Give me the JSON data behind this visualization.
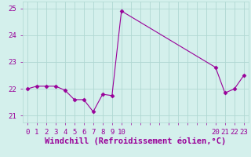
{
  "x": [
    0,
    1,
    2,
    3,
    4,
    5,
    6,
    7,
    8,
    9,
    10,
    20,
    21,
    22,
    23
  ],
  "y": [
    22.0,
    22.1,
    22.1,
    22.1,
    21.95,
    21.6,
    21.6,
    21.15,
    21.8,
    21.75,
    24.9,
    22.8,
    21.85,
    22.0,
    22.5
  ],
  "line_color": "#990099",
  "marker": "D",
  "marker_size": 2.5,
  "bg_color": "#d4f0ec",
  "grid_color": "#b0d8d2",
  "xlabel": "Windchill (Refroidissement éolien,°C)",
  "xlabel_color": "#990099",
  "ylim": [
    20.75,
    25.25
  ],
  "xlim": [
    -0.5,
    23.5
  ],
  "yticks": [
    21,
    22,
    23,
    24,
    25
  ],
  "xtick_positions": [
    0,
    1,
    2,
    3,
    4,
    5,
    6,
    7,
    8,
    9,
    10,
    20,
    21,
    22,
    23
  ],
  "xtick_labels": [
    "0",
    "1",
    "2",
    "3",
    "4",
    "5",
    "6",
    "7",
    "8",
    "9",
    "10",
    "20",
    "21",
    "22",
    "23"
  ],
  "tick_color": "#990099",
  "tick_fontsize": 6.5,
  "xlabel_fontsize": 7.5
}
